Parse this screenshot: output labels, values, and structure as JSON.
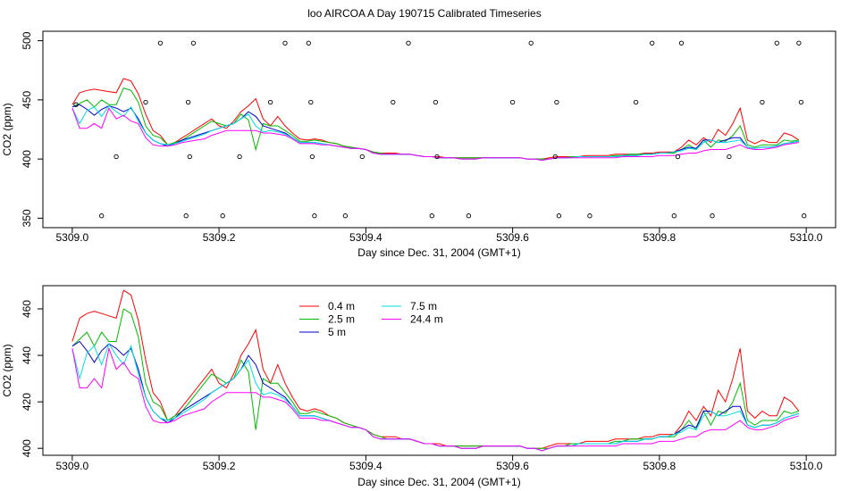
{
  "title": "loo AIRCOA A  Day 190715  Calibrated Timeseries",
  "colors": {
    "0.4 m": "#ff0000",
    "2.5 m": "#00bb00",
    "5 m": "#0000cc",
    "7.5 m": "#00dddd",
    "24.4 m": "#ff00ff"
  },
  "chart_data": [
    {
      "type": "line",
      "xlabel": "Day since Dec. 31, 2004 (GMT+1)",
      "ylabel": "CO2 (ppm)",
      "xlim": [
        5309.0,
        5310.0
      ],
      "ylim": [
        350,
        500
      ],
      "xticks": [
        "5309.0",
        "5309.2",
        "5309.4",
        "5309.6",
        "5309.8",
        "5310.0"
      ],
      "yticks": [
        "350",
        "400",
        "450",
        "500"
      ],
      "grid": false,
      "legend": "none",
      "x": [
        5309.0,
        5309.01,
        5309.02,
        5309.03,
        5309.04,
        5309.05,
        5309.06,
        5309.07,
        5309.08,
        5309.09,
        5309.1,
        5309.11,
        5309.12,
        5309.13,
        5309.14,
        5309.15,
        5309.16,
        5309.17,
        5309.18,
        5309.19,
        5309.2,
        5309.21,
        5309.22,
        5309.23,
        5309.24,
        5309.25,
        5309.26,
        5309.27,
        5309.28,
        5309.29,
        5309.3,
        5309.31,
        5309.32,
        5309.33,
        5309.34,
        5309.35,
        5309.36,
        5309.37,
        5309.38,
        5309.39,
        5309.4,
        5309.41,
        5309.42,
        5309.43,
        5309.44,
        5309.45,
        5309.46,
        5309.47,
        5309.48,
        5309.49,
        5309.5,
        5309.51,
        5309.52,
        5309.53,
        5309.54,
        5309.55,
        5309.56,
        5309.57,
        5309.58,
        5309.59,
        5309.6,
        5309.61,
        5309.62,
        5309.63,
        5309.64,
        5309.65,
        5309.66,
        5309.67,
        5309.68,
        5309.69,
        5309.7,
        5309.71,
        5309.72,
        5309.73,
        5309.74,
        5309.75,
        5309.76,
        5309.77,
        5309.78,
        5309.79,
        5309.8,
        5309.81,
        5309.82,
        5309.83,
        5309.84,
        5309.85,
        5309.86,
        5309.87,
        5309.88,
        5309.89,
        5309.9,
        5309.91,
        5309.92,
        5309.93,
        5309.94,
        5309.95,
        5309.96,
        5309.97,
        5309.98,
        5309.99
      ],
      "series": [
        {
          "name": "0.4 m",
          "values": [
            446,
            456,
            458,
            459,
            458,
            457,
            456,
            468,
            466,
            455,
            438,
            424,
            420,
            412,
            414,
            418,
            422,
            426,
            430,
            434,
            428,
            426,
            432,
            440,
            445,
            451,
            434,
            428,
            436,
            428,
            422,
            417,
            416,
            417,
            416,
            414,
            413,
            411,
            410,
            409,
            408,
            406,
            405,
            405,
            405,
            404,
            404,
            403,
            402,
            402,
            402,
            401,
            401,
            401,
            401,
            401,
            401,
            401,
            401,
            401,
            401,
            401,
            400,
            400,
            400,
            401,
            402,
            402,
            402,
            402,
            403,
            403,
            403,
            403,
            404,
            404,
            404,
            404,
            405,
            405,
            406,
            406,
            406,
            410,
            416,
            412,
            418,
            414,
            425,
            420,
            430,
            443,
            416,
            413,
            416,
            414,
            414,
            422,
            420,
            416
          ]
        },
        {
          "name": "2.5 m",
          "values": [
            444,
            447,
            450,
            444,
            450,
            446,
            446,
            460,
            458,
            448,
            428,
            420,
            418,
            412,
            414,
            416,
            420,
            424,
            428,
            432,
            430,
            428,
            430,
            438,
            433,
            408,
            430,
            428,
            428,
            424,
            420,
            415,
            415,
            416,
            415,
            414,
            413,
            411,
            410,
            409,
            408,
            406,
            405,
            404,
            404,
            404,
            404,
            403,
            402,
            402,
            401,
            401,
            401,
            401,
            401,
            401,
            401,
            401,
            401,
            401,
            401,
            401,
            400,
            400,
            400,
            400,
            401,
            401,
            402,
            402,
            402,
            402,
            402,
            402,
            403,
            403,
            404,
            404,
            404,
            404,
            405,
            405,
            405,
            408,
            412,
            408,
            416,
            410,
            416,
            415,
            420,
            428,
            412,
            410,
            412,
            412,
            412,
            416,
            415,
            416
          ]
        },
        {
          "name": "5 m",
          "values": [
            444,
            446,
            442,
            437,
            442,
            445,
            443,
            440,
            443,
            434,
            422,
            416,
            413,
            411,
            413,
            416,
            418,
            420,
            422,
            424,
            426,
            428,
            430,
            434,
            440,
            436,
            428,
            426,
            424,
            422,
            418,
            414,
            414,
            414,
            413,
            412,
            411,
            410,
            409,
            409,
            408,
            405,
            404,
            404,
            404,
            404,
            404,
            403,
            402,
            402,
            401,
            401,
            401,
            400,
            400,
            400,
            401,
            401,
            401,
            401,
            401,
            401,
            400,
            400,
            399,
            400,
            401,
            401,
            401,
            402,
            402,
            402,
            402,
            402,
            402,
            403,
            403,
            403,
            404,
            404,
            405,
            405,
            406,
            408,
            410,
            409,
            416,
            416,
            414,
            416,
            418,
            418,
            410,
            409,
            410,
            410,
            411,
            413,
            414,
            415
          ]
        },
        {
          "name": "7.5 m",
          "values": [
            443,
            430,
            441,
            444,
            436,
            445,
            440,
            436,
            444,
            432,
            422,
            416,
            413,
            412,
            413,
            415,
            417,
            419,
            421,
            424,
            426,
            428,
            430,
            434,
            438,
            428,
            423,
            424,
            423,
            421,
            418,
            414,
            414,
            414,
            413,
            412,
            411,
            410,
            409,
            409,
            408,
            405,
            404,
            404,
            404,
            404,
            404,
            403,
            402,
            402,
            401,
            401,
            401,
            400,
            400,
            400,
            401,
            401,
            401,
            401,
            401,
            401,
            400,
            400,
            399,
            400,
            401,
            401,
            401,
            402,
            402,
            402,
            402,
            402,
            402,
            403,
            403,
            403,
            404,
            404,
            405,
            405,
            406,
            407,
            409,
            408,
            414,
            416,
            414,
            414,
            415,
            416,
            410,
            409,
            410,
            410,
            411,
            413,
            414,
            415
          ]
        },
        {
          "name": "24.4 m",
          "values": [
            443,
            426,
            426,
            430,
            426,
            443,
            434,
            437,
            432,
            430,
            418,
            412,
            411,
            411,
            412,
            414,
            415,
            416,
            417,
            420,
            422,
            424,
            424,
            424,
            424,
            424,
            422,
            422,
            421,
            420,
            417,
            413,
            413,
            413,
            412,
            412,
            411,
            410,
            409,
            409,
            408,
            405,
            404,
            404,
            404,
            404,
            404,
            403,
            402,
            402,
            401,
            401,
            401,
            400,
            400,
            400,
            401,
            401,
            401,
            401,
            401,
            401,
            400,
            400,
            399,
            400,
            401,
            401,
            401,
            401,
            401,
            401,
            401,
            401,
            401,
            402,
            402,
            402,
            402,
            402,
            403,
            403,
            403,
            404,
            405,
            405,
            407,
            408,
            408,
            408,
            410,
            412,
            409,
            408,
            408,
            409,
            410,
            412,
            413,
            414
          ]
        }
      ],
      "scatter": {
        "name": "samples",
        "x": [
          5309.005,
          5309.04,
          5309.06,
          5309.1,
          5309.12,
          5309.155,
          5309.158,
          5309.16,
          5309.165,
          5309.205,
          5309.228,
          5309.27,
          5309.29,
          5309.322,
          5309.325,
          5309.327,
          5309.33,
          5309.372,
          5309.395,
          5309.437,
          5309.458,
          5309.49,
          5309.495,
          5309.497,
          5309.54,
          5309.6,
          5309.625,
          5309.66,
          5309.658,
          5309.663,
          5309.705,
          5309.768,
          5309.79,
          5309.82,
          5309.825,
          5309.83,
          5309.872,
          5309.895,
          5309.94,
          5309.96,
          5309.99,
          5309.993,
          5309.997
        ],
        "y": [
          446,
          352,
          402,
          448,
          498,
          352,
          448,
          402,
          498,
          352,
          402,
          448,
          498,
          498,
          448,
          402,
          352,
          352,
          402,
          448,
          498,
          352,
          448,
          402,
          352,
          448,
          498,
          448,
          402,
          352,
          352,
          448,
          498,
          352,
          402,
          498,
          352,
          402,
          448,
          498,
          498,
          448,
          352
        ]
      }
    },
    {
      "type": "line",
      "xlabel": "Day since Dec. 31, 2004 (GMT+1)",
      "ylabel": "CO2 (ppm)",
      "xlim": [
        5309.0,
        5310.0
      ],
      "ylim": [
        397,
        470
      ],
      "xticks": [
        "5309.0",
        "5309.2",
        "5309.4",
        "5309.6",
        "5309.8",
        "5310.0"
      ],
      "yticks": [
        "400",
        "420",
        "440",
        "460"
      ],
      "grid": false,
      "legend": "top-left",
      "legend_entries": [
        "0.4 m",
        "2.5 m",
        "5 m",
        "7.5 m",
        "24.4 m"
      ],
      "series_ref": "same data as panel 1"
    }
  ]
}
